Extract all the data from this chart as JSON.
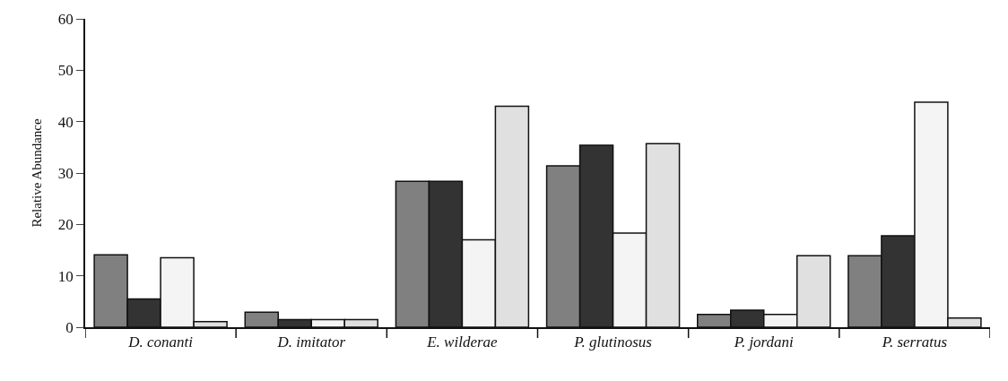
{
  "chart_data": {
    "type": "bar",
    "ylabel": "Relative Abundance",
    "categories": [
      "D. conanti",
      "D. imitator",
      "E. wilderae",
      "P. glutinosus",
      "P. jordani",
      "P. serratus"
    ],
    "series": [
      {
        "color": "#808080",
        "values": [
          14.1,
          2.9,
          28.4,
          31.4,
          2.5,
          13.9
        ]
      },
      {
        "color": "#333333",
        "values": [
          5.5,
          1.5,
          28.4,
          35.4,
          3.3,
          17.8
        ]
      },
      {
        "color": "#f4f4f4",
        "values": [
          13.5,
          1.5,
          17.0,
          18.3,
          2.5,
          43.8
        ]
      },
      {
        "color": "#e0e0e0",
        "values": [
          1.1,
          1.5,
          43.0,
          35.7,
          13.9,
          1.8
        ]
      }
    ],
    "ylim": [
      0,
      60
    ],
    "yticks": [
      0,
      10,
      20,
      30,
      40,
      50,
      60
    ]
  }
}
